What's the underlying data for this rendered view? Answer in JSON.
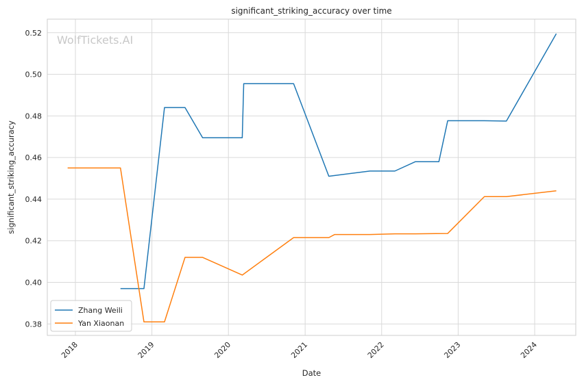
{
  "chart_data": {
    "type": "line",
    "title": "significant_striking_accuracy over time",
    "xlabel": "Date",
    "ylabel": "significant_striking_accuracy",
    "watermark": "WolfTickets.AI",
    "x_ticks": [
      "2018",
      "2019",
      "2020",
      "2021",
      "2022",
      "2023",
      "2024"
    ],
    "y_ticks": [
      "0.38",
      "0.40",
      "0.42",
      "0.44",
      "0.46",
      "0.48",
      "0.50",
      "0.52"
    ],
    "xlim": [
      "2017-08-20",
      "2024-07-15"
    ],
    "ylim": [
      0.3745,
      0.5265
    ],
    "grid": true,
    "legend_position": "lower-left",
    "series": [
      {
        "name": "Zhang Weili",
        "color": "#1f77b4",
        "points": [
          [
            "2018-08-04",
            0.397
          ],
          [
            "2018-11-24",
            0.397
          ],
          [
            "2019-03-02",
            0.484
          ],
          [
            "2019-06-08",
            0.484
          ],
          [
            "2019-08-31",
            0.4695
          ],
          [
            "2020-03-07",
            0.4695
          ],
          [
            "2020-03-14",
            0.4955
          ],
          [
            "2020-11-07",
            0.4955
          ],
          [
            "2021-04-24",
            0.451
          ],
          [
            "2021-11-06",
            0.4535
          ],
          [
            "2022-03-05",
            0.4535
          ],
          [
            "2022-06-11",
            0.458
          ],
          [
            "2022-10-01",
            0.458
          ],
          [
            "2022-11-12",
            0.4777
          ],
          [
            "2023-05-06",
            0.4777
          ],
          [
            "2023-08-19",
            0.4775
          ],
          [
            "2024-04-13",
            0.5195
          ]
        ]
      },
      {
        "name": "Yan Xiaonan",
        "color": "#ff7f0e",
        "points": [
          [
            "2017-11-25",
            0.455
          ],
          [
            "2018-08-04",
            0.455
          ],
          [
            "2018-11-24",
            0.381
          ],
          [
            "2019-03-02",
            0.381
          ],
          [
            "2019-06-08",
            0.412
          ],
          [
            "2019-08-31",
            0.412
          ],
          [
            "2020-03-07",
            0.4035
          ],
          [
            "2020-11-07",
            0.4215
          ],
          [
            "2021-04-24",
            0.4215
          ],
          [
            "2021-05-22",
            0.423
          ],
          [
            "2021-11-06",
            0.423
          ],
          [
            "2022-03-05",
            0.4233
          ],
          [
            "2022-06-11",
            0.4233
          ],
          [
            "2022-11-12",
            0.4235
          ],
          [
            "2023-05-06",
            0.4412
          ],
          [
            "2023-08-19",
            0.4412
          ],
          [
            "2024-04-13",
            0.444
          ]
        ]
      }
    ]
  }
}
